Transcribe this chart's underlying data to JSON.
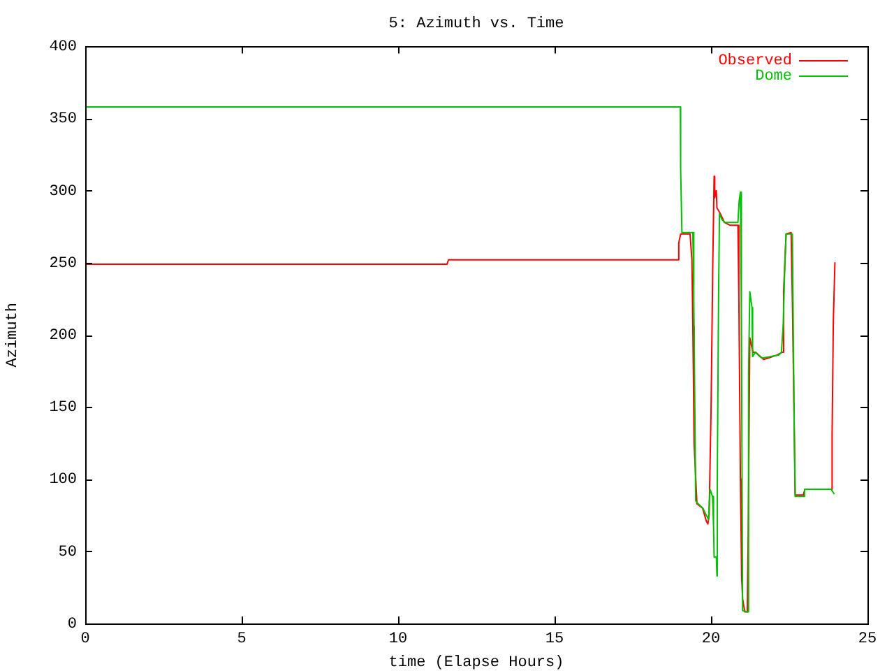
{
  "chart_data": {
    "type": "line",
    "title": "5: Azimuth vs. Time",
    "xlabel": "time (Elapse Hours)",
    "ylabel": "Azimuth",
    "xlim": [
      0,
      25
    ],
    "xticks": [
      0,
      5,
      10,
      15,
      20,
      25
    ],
    "ylim": [
      0,
      400
    ],
    "yticks": [
      0,
      50,
      100,
      150,
      200,
      250,
      300,
      350,
      400
    ],
    "grid": false,
    "legend": "top right",
    "marker": "none",
    "line_style": "solid",
    "series": [
      {
        "name": "Observed",
        "color": "#ff0000",
        "x": [
          0,
          11.56,
          11.61,
          18.93,
          18.97,
          19.03,
          19.33,
          19.39,
          19.42,
          19.46,
          19.55,
          19.73,
          19.85,
          19.9,
          19.94,
          20.0,
          20.06,
          20.1,
          20.12,
          20.17,
          20.19,
          20.3,
          20.43,
          20.61,
          20.86,
          20.89,
          20.94,
          20.98,
          21.01,
          21.08,
          21.16,
          21.19,
          21.24,
          21.34,
          21.43,
          21.68,
          21.83,
          22.1,
          22.28,
          22.32,
          22.4,
          22.56,
          22.6,
          22.66,
          22.69,
          22.95,
          23.0,
          23.84,
          23.87,
          23.91,
          23.96
        ],
        "values": [
          249,
          249,
          252,
          252,
          264,
          270,
          270,
          252,
          206,
          125,
          83,
          80,
          71,
          69,
          75,
          146,
          254,
          310,
          295,
          300,
          288,
          284,
          278,
          276,
          276,
          227,
          100,
          32,
          17,
          8,
          8,
          64,
          198,
          188,
          188,
          183,
          184,
          186,
          188,
          230,
          270,
          271,
          225,
          135,
          89,
          89,
          93,
          93,
          131,
          210,
          250
        ]
      },
      {
        "name": "Dome",
        "color": "#00c000",
        "x": [
          0,
          19.02,
          19.03,
          19.07,
          19.42,
          19.45,
          19.49,
          19.51,
          19.59,
          19.74,
          19.85,
          19.92,
          19.97,
          20.05,
          20.08,
          20.1,
          20.17,
          20.19,
          20.2,
          20.24,
          20.27,
          20.35,
          20.44,
          20.86,
          20.9,
          20.94,
          20.97,
          21.01,
          21.17,
          21.2,
          21.24,
          21.31,
          21.33,
          21.42,
          21.56,
          21.64,
          22.16,
          22.25,
          22.31,
          22.36,
          22.4,
          22.6,
          22.66,
          22.69,
          22.95,
          22.99,
          23.84,
          23.93
        ],
        "values": [
          358,
          358,
          315,
          271,
          271,
          225,
          132,
          85,
          83,
          80,
          75,
          72,
          93,
          88,
          68,
          46,
          46,
          33,
          96,
          222,
          284,
          280,
          278,
          278,
          293,
          299,
          217,
          9,
          8,
          174,
          230,
          219,
          185,
          188,
          185,
          184,
          186,
          188,
          208,
          249,
          270,
          270,
          135,
          88,
          88,
          93,
          93,
          90
        ]
      }
    ]
  }
}
